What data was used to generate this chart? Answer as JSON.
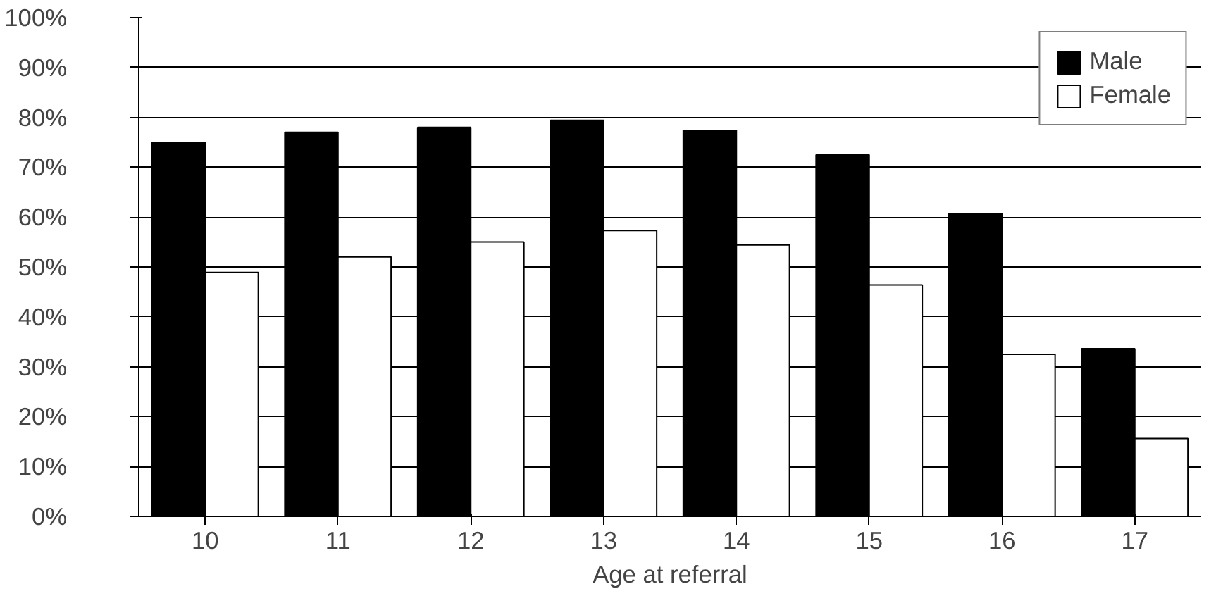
{
  "chart_data": {
    "type": "bar",
    "xlabel": "Age at referral",
    "categories": [
      "10",
      "11",
      "12",
      "13",
      "14",
      "15",
      "16",
      "17"
    ],
    "series": [
      {
        "name": "Male",
        "color": "#000000",
        "values": [
          75,
          77,
          78,
          79.4,
          77.4,
          72.5,
          60.7,
          33.6
        ]
      },
      {
        "name": "Female",
        "color": "#ffffff",
        "values": [
          48.9,
          52,
          55,
          57.3,
          54.4,
          46.4,
          32.5,
          15.6
        ]
      }
    ],
    "ylim": [
      0,
      100
    ],
    "yticks": [
      {
        "value": 0,
        "label": "0%"
      },
      {
        "value": 10,
        "label": "10%"
      },
      {
        "value": 20,
        "label": "20%"
      },
      {
        "value": 30,
        "label": "30%"
      },
      {
        "value": 40,
        "label": "40%"
      },
      {
        "value": 50,
        "label": "50%"
      },
      {
        "value": 60,
        "label": "60%"
      },
      {
        "value": 70,
        "label": "70%"
      },
      {
        "value": 80,
        "label": "80%"
      },
      {
        "value": 90,
        "label": "90%"
      },
      {
        "value": 100,
        "label": "100%"
      }
    ],
    "grid": "y",
    "legend": "top right"
  }
}
